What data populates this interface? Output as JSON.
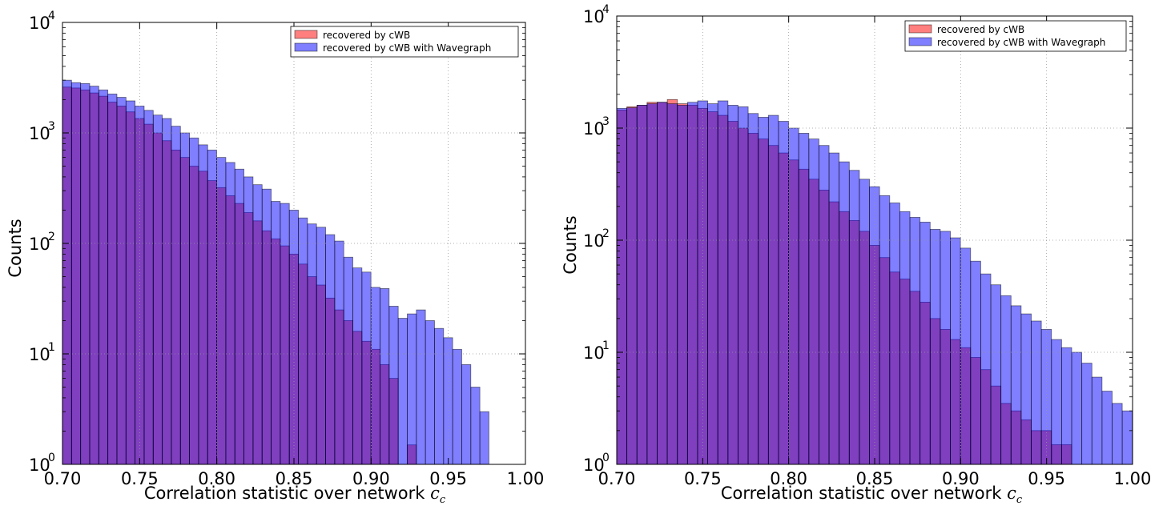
{
  "chart_data": [
    {
      "type": "bar",
      "xlabel": "Correlation statistic over network",
      "xlabel_symbol": "c",
      "xlabel_symbol_sub": "c",
      "ylabel": "Counts",
      "xlim": [
        0.7,
        1.0
      ],
      "ylim": [
        1,
        10000
      ],
      "yscale": "log",
      "grid": true,
      "legend_position": "top-right",
      "x_ticks": [
        "0.70",
        "0.75",
        "0.80",
        "0.85",
        "0.90",
        "0.95",
        "1.00"
      ],
      "y_ticks": [
        {
          "base": "10",
          "exp": "0"
        },
        {
          "base": "10",
          "exp": "1"
        },
        {
          "base": "10",
          "exp": "2"
        },
        {
          "base": "10",
          "exp": "3"
        },
        {
          "base": "10",
          "exp": "4"
        }
      ],
      "bin_width": 0.00588,
      "bin_start": 0.7,
      "series": [
        {
          "name": "recovered by cWB",
          "color": "#ff0000",
          "values": [
            2600,
            2550,
            2450,
            2300,
            2150,
            1900,
            1750,
            1550,
            1350,
            1200,
            1000,
            850,
            700,
            600,
            500,
            450,
            370,
            320,
            270,
            230,
            190,
            160,
            130,
            110,
            95,
            80,
            65,
            50,
            42,
            32,
            25,
            20,
            16,
            13,
            11,
            8,
            6,
            0,
            1.5,
            0,
            0,
            0,
            0,
            0,
            0,
            0,
            0,
            0,
            0,
            0,
            0
          ]
        },
        {
          "name": "recovered by cWB with Wavegraph",
          "color": "#0000ff",
          "values": [
            3000,
            2850,
            2800,
            2650,
            2450,
            2250,
            2100,
            1950,
            1750,
            1600,
            1450,
            1350,
            1150,
            1000,
            900,
            780,
            700,
            600,
            540,
            470,
            400,
            340,
            310,
            240,
            230,
            200,
            170,
            150,
            140,
            120,
            105,
            75,
            60,
            55,
            40,
            39,
            27,
            21,
            23,
            25,
            20,
            17,
            14,
            11,
            8,
            5,
            3,
            0,
            0,
            0,
            0
          ]
        }
      ]
    },
    {
      "type": "bar",
      "xlabel": "Correlation statistic over network",
      "xlabel_symbol": "c",
      "xlabel_symbol_sub": "c",
      "ylabel": "Counts",
      "xlim": [
        0.7,
        1.0
      ],
      "ylim": [
        1,
        10000
      ],
      "yscale": "log",
      "grid": true,
      "legend_position": "top-right",
      "x_ticks": [
        "0.70",
        "0.75",
        "0.80",
        "0.85",
        "0.90",
        "0.95",
        "1.00"
      ],
      "y_ticks": [
        {
          "base": "10",
          "exp": "0"
        },
        {
          "base": "10",
          "exp": "1"
        },
        {
          "base": "10",
          "exp": "2"
        },
        {
          "base": "10",
          "exp": "3"
        },
        {
          "base": "10",
          "exp": "4"
        }
      ],
      "bin_width": 0.00588,
      "bin_start": 0.7,
      "series": [
        {
          "name": "recovered by cWB",
          "color": "#ff0000",
          "values": [
            1450,
            1550,
            1600,
            1700,
            1700,
            1800,
            1650,
            1600,
            1500,
            1400,
            1300,
            1150,
            1000,
            900,
            800,
            700,
            600,
            520,
            430,
            350,
            280,
            220,
            180,
            150,
            120,
            90,
            70,
            52,
            45,
            35,
            28,
            20,
            16,
            13,
            11,
            9,
            7,
            5,
            3.5,
            3,
            2.5,
            2,
            2,
            1.5,
            1.5,
            0,
            0,
            0,
            0,
            0,
            0
          ]
        },
        {
          "name": "recovered by cWB with Wavegraph",
          "color": "#0000ff",
          "values": [
            1500,
            1520,
            1600,
            1650,
            1700,
            1650,
            1600,
            1700,
            1750,
            1650,
            1750,
            1600,
            1550,
            1350,
            1250,
            1300,
            1150,
            1000,
            900,
            800,
            700,
            600,
            500,
            420,
            350,
            300,
            250,
            215,
            180,
            160,
            145,
            125,
            120,
            105,
            85,
            65,
            50,
            40,
            32,
            26,
            22,
            19,
            16,
            13,
            11,
            10,
            8,
            6,
            4.5,
            3.5,
            3
          ]
        }
      ]
    }
  ]
}
